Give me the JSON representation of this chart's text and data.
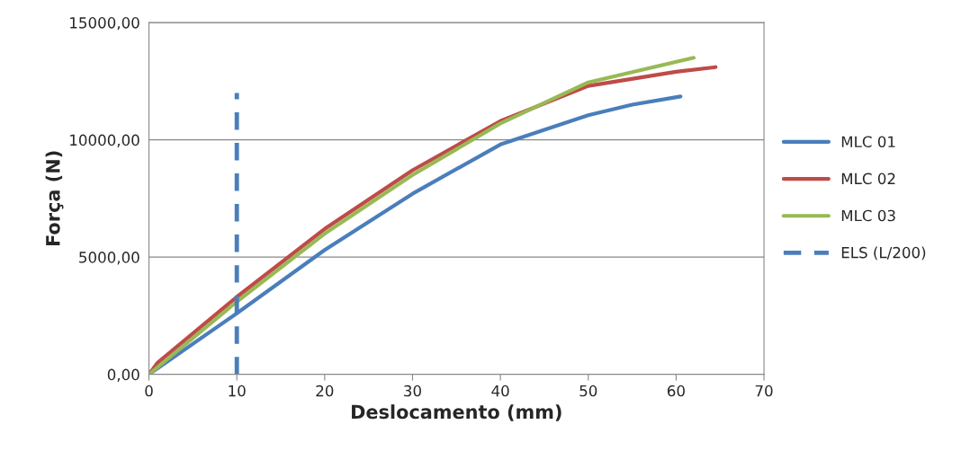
{
  "chart_data": {
    "type": "line",
    "xlabel": "Deslocamento (mm)",
    "ylabel": "Força (N)",
    "xlim": [
      0,
      70
    ],
    "xticks": [
      0,
      10,
      20,
      30,
      40,
      50,
      60,
      70
    ],
    "ylim": [
      0,
      15000
    ],
    "yticks": [
      {
        "value": 0,
        "label": "0,00"
      },
      {
        "value": 5000,
        "label": "5000,00"
      },
      {
        "value": 10000,
        "label": "10000,00"
      },
      {
        "value": 15000,
        "label": "15000,00"
      }
    ],
    "grid": "y",
    "legend": "right",
    "marker": "none",
    "series": [
      {
        "name": "MLC 01",
        "color": "#4a7ebb",
        "x": [
          0,
          10,
          20,
          30,
          40,
          50,
          55,
          60.5
        ],
        "values": [
          0,
          2600,
          5300,
          7700,
          9800,
          11050,
          11500,
          11850
        ]
      },
      {
        "name": "MLC 02",
        "color": "#be4b48",
        "x": [
          0,
          1,
          10,
          20,
          30,
          40,
          50,
          60,
          64.5
        ],
        "values": [
          0,
          500,
          3300,
          6200,
          8700,
          10800,
          12300,
          12900,
          13100
        ]
      },
      {
        "name": "MLC 03",
        "color": "#98b954",
        "x": [
          0,
          10,
          20,
          30,
          40,
          50,
          62
        ],
        "values": [
          0,
          3100,
          6000,
          8500,
          10700,
          12450,
          13500
        ]
      },
      {
        "name": "ELS (L/200)",
        "color": "#4a7ebb",
        "line_style": "dashed",
        "x": [
          10,
          10
        ],
        "values": [
          0,
          12000
        ]
      }
    ]
  }
}
